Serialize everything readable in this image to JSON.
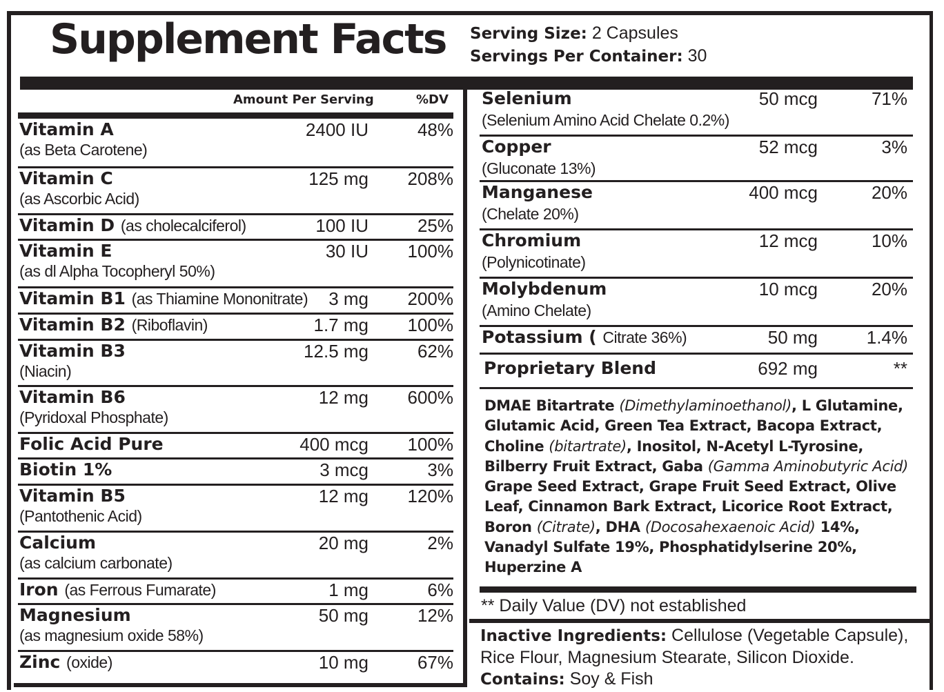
{
  "title": "Supplement Facts",
  "serving": {
    "size_label": "Serving Size:",
    "size_value": "2 Capsules",
    "per_container_label": "Servings Per Container:",
    "per_container_value": "30"
  },
  "columns": {
    "amount": "Amount Per Serving",
    "dv": "%DV"
  },
  "left_rows": [
    {
      "name": "Vitamin A",
      "inline": "",
      "detail": "(as Beta Carotene)",
      "amount": "2400 IU",
      "dv": "48%"
    },
    {
      "name": "Vitamin C",
      "inline": "",
      "detail": "(as Ascorbic Acid)",
      "amount": "125 mg",
      "dv": "208%"
    },
    {
      "name": "Vitamin D",
      "inline": "(as cholecalciferol)",
      "detail": "",
      "amount": "100 IU",
      "dv": "25%"
    },
    {
      "name": "Vitamin E",
      "inline": "",
      "detail": "(as dl Alpha Tocopheryl 50%)",
      "amount": "30 IU",
      "dv": "100%"
    },
    {
      "name": "Vitamin B1",
      "inline": "(as Thiamine Mononitrate)",
      "detail": "",
      "amount": "3 mg",
      "dv": "200%"
    },
    {
      "name": "Vitamin B2",
      "inline": "(Riboflavin)",
      "detail": "",
      "amount": "1.7 mg",
      "dv": "100%"
    },
    {
      "name": "Vitamin B3",
      "inline": "",
      "detail": "(Niacin)",
      "amount": "12.5 mg",
      "dv": "62%"
    },
    {
      "name": "Vitamin B6",
      "inline": "",
      "detail": "(Pyridoxal Phosphate)",
      "amount": "12 mg",
      "dv": "600%"
    },
    {
      "name": "Folic Acid Pure",
      "inline": "",
      "detail": "",
      "amount": "400 mcg",
      "dv": "100%"
    },
    {
      "name": "Biotin 1%",
      "inline": "",
      "detail": "",
      "amount": "3 mcg",
      "dv": "3%"
    },
    {
      "name": "Vitamin B5",
      "inline": "",
      "detail": "(Pantothenic Acid)",
      "amount": "12 mg",
      "dv": "120%"
    },
    {
      "name": "Calcium",
      "inline": "",
      "detail": "(as calcium carbonate)",
      "amount": "20 mg",
      "dv": "2%"
    },
    {
      "name": "Iron",
      "inline": "(as Ferrous Fumarate)",
      "detail": "",
      "amount": "1 mg",
      "dv": "6%"
    },
    {
      "name": "Magnesium",
      "inline": "",
      "detail": "(as magnesium oxide 58%)",
      "amount": "50 mg",
      "dv": "12%"
    },
    {
      "name": "Zinc",
      "inline": "(oxide)",
      "detail": "",
      "amount": "10 mg",
      "dv": "67%"
    }
  ],
  "right_rows": [
    {
      "name": "Selenium",
      "inline": "",
      "detail": "(Selenium Amino Acid Chelate 0.2%)",
      "amount": "50 mcg",
      "dv": "71%"
    },
    {
      "name": "Copper",
      "inline": "",
      "detail": "(Gluconate 13%)",
      "amount": "52 mcg",
      "dv": "3%"
    },
    {
      "name": "Manganese",
      "inline": "",
      "detail": "(Chelate 20%)",
      "amount": "400 mcg",
      "dv": "20%"
    },
    {
      "name": "Chromium",
      "inline": "",
      "detail": "(Polynicotinate)",
      "amount": "12 mcg",
      "dv": "10%"
    },
    {
      "name": "Molybdenum",
      "inline": "",
      "detail": "(Amino Chelate)",
      "amount": "10 mcg",
      "dv": "20%"
    },
    {
      "name": "Potassium (",
      "inline": "Citrate 36%)",
      "detail": "",
      "amount": "50 mg",
      "dv": "1.4%"
    },
    {
      "name": "Proprietary Blend",
      "inline": "",
      "detail": "",
      "amount": "692 mg",
      "dv": "**"
    }
  ],
  "blend_ingredients": [
    {
      "t": "DMAE Bitartrate ",
      "i": false
    },
    {
      "t": "(Dimethylaminoethanol)",
      "i": true
    },
    {
      "t": ", L Glutamine, Glutamic Acid, Green Tea Extract, Bacopa Extract, Choline ",
      "i": false
    },
    {
      "t": "(bitartrate)",
      "i": true
    },
    {
      "t": ", Inositol, N-Acetyl L-Tyrosine, Bilberry Fruit Extract, Gaba ",
      "i": false
    },
    {
      "t": "(Gamma Aminobutyric Acid)",
      "i": true
    },
    {
      "t": " Grape Seed Extract, Grape Fruit Seed Extract, Olive Leaf, Cinnamon Bark Extract, Licorice Root Extract, Boron ",
      "i": false
    },
    {
      "t": "(Citrate)",
      "i": true
    },
    {
      "t": ", DHA ",
      "i": false
    },
    {
      "t": "(Docosahexaenoic Acid)",
      "i": true
    },
    {
      "t": " 14%, Vanadyl Sulfate 19%, Phosphatidylserine 20%, Huperzine A",
      "i": false
    }
  ],
  "dv_note": "** Daily Value (DV) not established",
  "inactive": {
    "label": "Inactive Ingredients:",
    "text": " Cellulose (Vegetable Capsule), Rice Flour, Magnesium Stearate, Silicon Dioxide.",
    "contains_label": "Contains:",
    "contains_text": " Soy & Fish"
  }
}
